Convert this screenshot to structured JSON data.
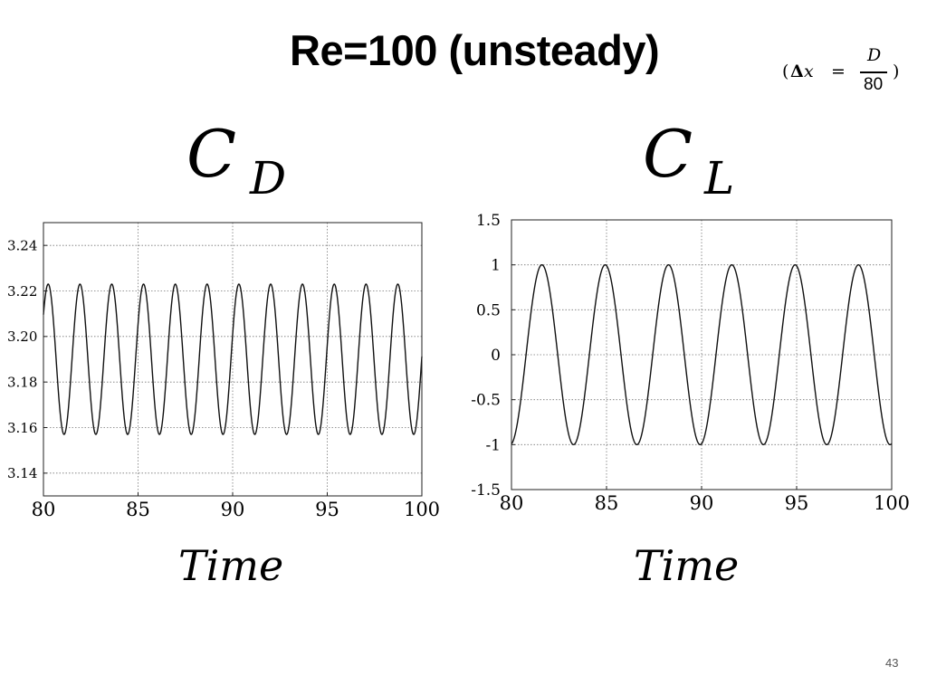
{
  "slide": {
    "title": "Re=100 (unsteady)",
    "resolution_note": {
      "open": "(",
      "delta": "Δ",
      "x": "x",
      "eq": "=",
      "num": "D",
      "den": "80",
      "close": ")"
    },
    "page_number": "43"
  },
  "chart_data": [
    {
      "type": "line",
      "title_symbol": "C",
      "title_subscript": "D",
      "xlabel": "Time",
      "ylabel": "",
      "xlim": [
        80,
        100
      ],
      "ylim": [
        3.13,
        3.25
      ],
      "xticks": [
        80,
        85,
        90,
        95,
        100
      ],
      "yticks": [
        3.14,
        3.16,
        3.18,
        3.2,
        3.22,
        3.24
      ],
      "ytick_labels": [
        "3.14",
        "3.16",
        "3.18",
        "3.20",
        "3.22",
        "3.24"
      ],
      "grid": true,
      "series": [
        {
          "mean": 3.19,
          "amplitude": 0.033,
          "period": 1.68,
          "phase_time": 80.25,
          "peak_times": [
            80.25,
            81.93,
            83.61,
            85.29,
            86.97,
            88.65,
            90.33,
            92.01,
            93.69,
            95.37,
            97.05,
            98.73
          ],
          "peak_value": 3.223,
          "trough_value": 3.157
        }
      ]
    },
    {
      "type": "line",
      "title_symbol": "C",
      "title_subscript": "L",
      "xlabel": "Time",
      "ylabel": "",
      "xlim": [
        80,
        100
      ],
      "ylim": [
        -1.5,
        1.5
      ],
      "xticks": [
        80,
        85,
        90,
        95,
        100
      ],
      "yticks": [
        -1.5,
        -1,
        -0.5,
        0,
        0.5,
        1,
        1.5
      ],
      "ytick_labels": [
        "-1.5",
        "-1",
        "-0.5",
        "0",
        "0.5",
        "1",
        "1.5"
      ],
      "grid": true,
      "series": [
        {
          "mean": 0,
          "amplitude": 1.0,
          "period": 3.33,
          "phase_time": 81.6,
          "peak_times": [
            81.6,
            84.93,
            88.26,
            91.59,
            94.92,
            98.25
          ],
          "peak_value": 1.0,
          "trough_value": -1.0
        }
      ]
    }
  ]
}
